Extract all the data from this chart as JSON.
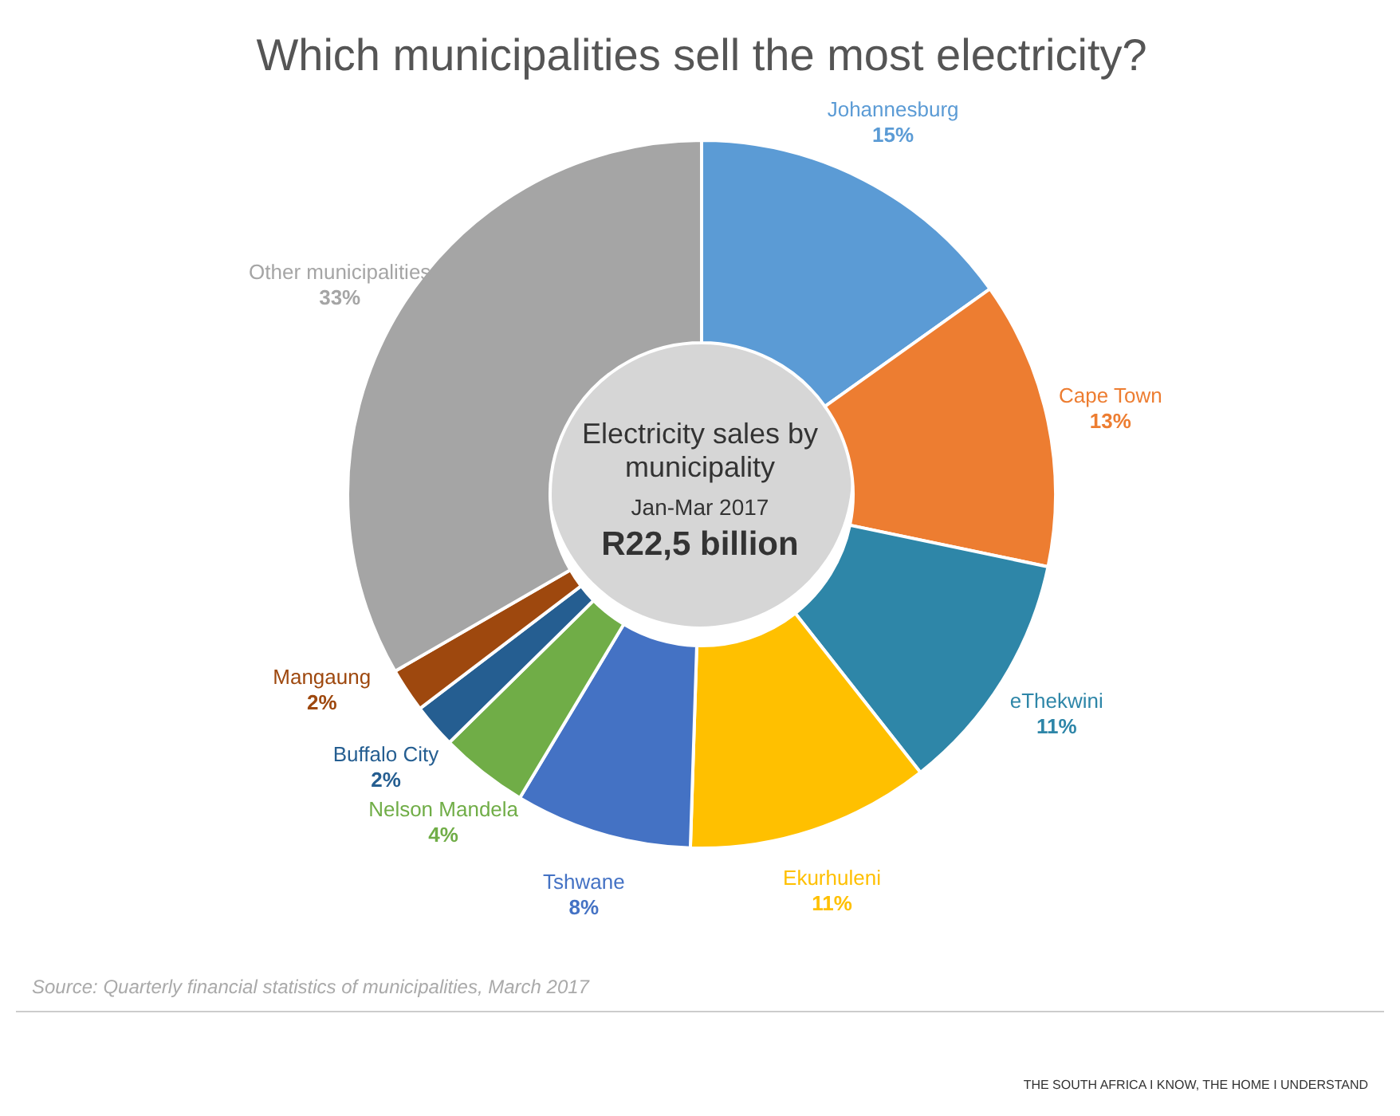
{
  "chart_data": {
    "type": "donut",
    "title": "Which municipalities sell the most electricity?",
    "categories": [
      "Johannesburg",
      "Cape Town",
      "eThekwini",
      "Ekurhuleni",
      "Tshwane",
      "Nelson Mandela",
      "Buffalo City",
      "Mangaung",
      "Other municipalities"
    ],
    "values": [
      15,
      13,
      11,
      11,
      8,
      4,
      2,
      2,
      33
    ],
    "value_labels": [
      "15%",
      "13%",
      "11%",
      "11%",
      "8%",
      "4%",
      "2%",
      "2%",
      "33%"
    ],
    "colors": [
      "#5b9bd5",
      "#ed7d31",
      "#2e86a8",
      "#ffc000",
      "#4472c4",
      "#70ad47",
      "#255e91",
      "#9e480e",
      "#a5a5a5"
    ],
    "annotations": [
      "Electricity sales by municipality",
      "Jan-Mar 2017",
      "R22,5 billion",
      "Source: Quarterly financial statistics of municipalities, March 2017",
      "THE SOUTH AFRICA I KNOW, THE HOME I UNDERSTAND"
    ]
  }
}
